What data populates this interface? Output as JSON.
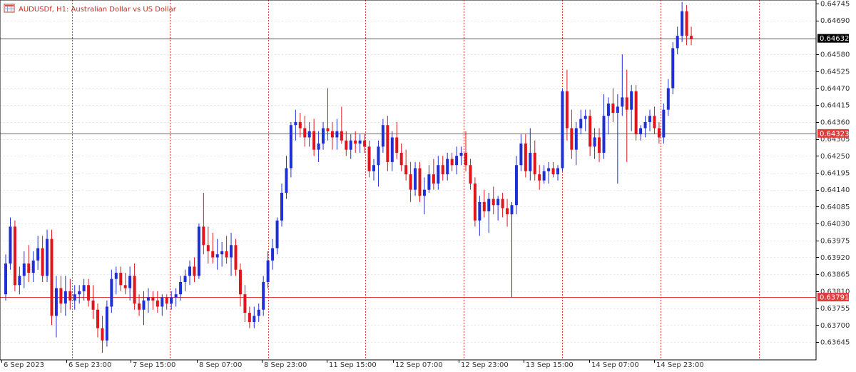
{
  "header": {
    "title": "AUDUSDf, H1:  Australian Dollar vs US Dollar",
    "icon": "chart-grid-icon"
  },
  "colors": {
    "bull": "#1f2fd6",
    "bear": "#e0141b",
    "grid": "#e6e6e6",
    "session": "#e03c3c",
    "level": "#e03c3c",
    "current": "#000000",
    "text": "#333333"
  },
  "chart_data": {
    "type": "candlestick",
    "title": "AUDUSDf, H1:  Australian Dollar vs US Dollar",
    "ylim": [
      0.6361,
      0.6477
    ],
    "grid": true,
    "y_ticks": [
      0.64745,
      0.6469,
      0.6458,
      0.64525,
      0.6447,
      0.64415,
      0.6436,
      0.64305,
      0.6425,
      0.64195,
      0.6414,
      0.64085,
      0.6403,
      0.63975,
      0.6392,
      0.63865,
      0.6381,
      0.63755,
      0.637,
      0.63645
    ],
    "x_labels": [
      "6 Sep 2023",
      "6 Sep 23:00",
      "7 Sep 15:00",
      "8 Sep 07:00",
      "8 Sep 23:00",
      "11 Sep 15:00",
      "12 Sep 07:00",
      "12 Sep 23:00",
      "13 Sep 15:00",
      "14 Sep 07:00",
      "14 Sep 23:00"
    ],
    "current_price": 0.64632,
    "levels": [
      0.64323,
      0.63791
    ],
    "candles": [
      [
        0.638,
        0.6393,
        0.6378,
        0.639
      ],
      [
        0.639,
        0.6405,
        0.6388,
        0.6402
      ],
      [
        0.6402,
        0.6404,
        0.6381,
        0.6383
      ],
      [
        0.6383,
        0.6389,
        0.638,
        0.6386
      ],
      [
        0.6386,
        0.6394,
        0.6382,
        0.639
      ],
      [
        0.639,
        0.6396,
        0.6384,
        0.6387
      ],
      [
        0.6387,
        0.6394,
        0.6384,
        0.6391
      ],
      [
        0.6391,
        0.6399,
        0.6388,
        0.6395
      ],
      [
        0.6395,
        0.6399,
        0.6384,
        0.6386
      ],
      [
        0.6386,
        0.6401,
        0.6384,
        0.6398
      ],
      [
        0.6398,
        0.6401,
        0.637,
        0.6373
      ],
      [
        0.6373,
        0.6386,
        0.6366,
        0.6382
      ],
      [
        0.6382,
        0.6386,
        0.6374,
        0.6377
      ],
      [
        0.6377,
        0.6386,
        0.6373,
        0.6381
      ],
      [
        0.6381,
        0.6385,
        0.6375,
        0.6378
      ],
      [
        0.6378,
        0.6383,
        0.6375,
        0.638
      ],
      [
        0.638,
        0.6383,
        0.6377,
        0.6381
      ],
      [
        0.6381,
        0.6385,
        0.6378,
        0.6383
      ],
      [
        0.6383,
        0.6385,
        0.6376,
        0.6378
      ],
      [
        0.6378,
        0.6383,
        0.6372,
        0.6375
      ],
      [
        0.6375,
        0.6377,
        0.6366,
        0.6369
      ],
      [
        0.6369,
        0.6373,
        0.6361,
        0.6365
      ],
      [
        0.6365,
        0.6378,
        0.6363,
        0.6376
      ],
      [
        0.6376,
        0.6388,
        0.6374,
        0.6385
      ],
      [
        0.6385,
        0.6389,
        0.638,
        0.6387
      ],
      [
        0.6387,
        0.6389,
        0.6381,
        0.6383
      ],
      [
        0.6383,
        0.6387,
        0.638,
        0.6382
      ],
      [
        0.6382,
        0.6389,
        0.6378,
        0.6386
      ],
      [
        0.6386,
        0.639,
        0.6375,
        0.6377
      ],
      [
        0.6377,
        0.638,
        0.6373,
        0.6375
      ],
      [
        0.6375,
        0.6381,
        0.637,
        0.6378
      ],
      [
        0.6378,
        0.6382,
        0.6374,
        0.6379
      ],
      [
        0.6379,
        0.6381,
        0.6375,
        0.6378
      ],
      [
        0.6378,
        0.6381,
        0.6374,
        0.6376
      ],
      [
        0.6376,
        0.638,
        0.6373,
        0.6379
      ],
      [
        0.6379,
        0.638,
        0.6375,
        0.6377
      ],
      [
        0.6377,
        0.6381,
        0.6375,
        0.6379
      ],
      [
        0.6379,
        0.6382,
        0.6376,
        0.638
      ],
      [
        0.638,
        0.6386,
        0.6378,
        0.6384
      ],
      [
        0.6384,
        0.6388,
        0.6381,
        0.6386
      ],
      [
        0.6386,
        0.6391,
        0.6383,
        0.6389
      ],
      [
        0.6389,
        0.6392,
        0.6384,
        0.6386
      ],
      [
        0.6386,
        0.6403,
        0.6385,
        0.6402
      ],
      [
        0.6402,
        0.6413,
        0.6393,
        0.6396
      ],
      [
        0.6396,
        0.6402,
        0.639,
        0.6394
      ],
      [
        0.6394,
        0.64,
        0.639,
        0.6392
      ],
      [
        0.6392,
        0.6398,
        0.6388,
        0.6393
      ],
      [
        0.6393,
        0.6397,
        0.6389,
        0.6394
      ],
      [
        0.6394,
        0.6399,
        0.639,
        0.6392
      ],
      [
        0.6392,
        0.64,
        0.6386,
        0.6396
      ],
      [
        0.6396,
        0.6398,
        0.6386,
        0.6388
      ],
      [
        0.6388,
        0.639,
        0.6376,
        0.638
      ],
      [
        0.638,
        0.6383,
        0.6371,
        0.6374
      ],
      [
        0.6374,
        0.6376,
        0.6369,
        0.6371
      ],
      [
        0.6371,
        0.6376,
        0.6369,
        0.6373
      ],
      [
        0.6373,
        0.6377,
        0.6371,
        0.6375
      ],
      [
        0.6375,
        0.6386,
        0.6373,
        0.6384
      ],
      [
        0.6384,
        0.6394,
        0.6382,
        0.6391
      ],
      [
        0.6391,
        0.6398,
        0.6388,
        0.6395
      ],
      [
        0.6395,
        0.6405,
        0.6393,
        0.6404
      ],
      [
        0.6404,
        0.6416,
        0.6402,
        0.6413
      ],
      [
        0.6413,
        0.6425,
        0.6411,
        0.6421
      ],
      [
        0.6421,
        0.6436,
        0.6418,
        0.6435
      ],
      [
        0.6435,
        0.644,
        0.643,
        0.6436
      ],
      [
        0.6436,
        0.6439,
        0.6431,
        0.6434
      ],
      [
        0.6434,
        0.6438,
        0.6428,
        0.6431
      ],
      [
        0.6431,
        0.6436,
        0.6428,
        0.6433
      ],
      [
        0.6433,
        0.6437,
        0.6425,
        0.6427
      ],
      [
        0.6427,
        0.6433,
        0.6423,
        0.6429
      ],
      [
        0.6429,
        0.6436,
        0.6427,
        0.6434
      ],
      [
        0.6434,
        0.6447,
        0.643,
        0.6433
      ],
      [
        0.6433,
        0.6436,
        0.6427,
        0.6431
      ],
      [
        0.6431,
        0.6437,
        0.6427,
        0.6433
      ],
      [
        0.6433,
        0.6441,
        0.6429,
        0.643
      ],
      [
        0.643,
        0.6433,
        0.6425,
        0.6427
      ],
      [
        0.6427,
        0.6432,
        0.6424,
        0.643
      ],
      [
        0.643,
        0.6433,
        0.6426,
        0.6429
      ],
      [
        0.6429,
        0.6432,
        0.6426,
        0.643
      ],
      [
        0.643,
        0.6432,
        0.6426,
        0.6428
      ],
      [
        0.6428,
        0.643,
        0.6418,
        0.642
      ],
      [
        0.642,
        0.6424,
        0.6417,
        0.6422
      ],
      [
        0.6422,
        0.643,
        0.6415,
        0.6428
      ],
      [
        0.6428,
        0.6437,
        0.6426,
        0.6435
      ],
      [
        0.6435,
        0.6438,
        0.642,
        0.6423
      ],
      [
        0.6423,
        0.6433,
        0.642,
        0.6431
      ],
      [
        0.6431,
        0.6436,
        0.6424,
        0.6426
      ],
      [
        0.6426,
        0.6429,
        0.642,
        0.6422
      ],
      [
        0.6422,
        0.6427,
        0.6417,
        0.6419
      ],
      [
        0.6419,
        0.6423,
        0.641,
        0.6414
      ],
      [
        0.6414,
        0.6423,
        0.6412,
        0.6421
      ],
      [
        0.6421,
        0.6423,
        0.641,
        0.6412
      ],
      [
        0.6412,
        0.6418,
        0.6406,
        0.6414
      ],
      [
        0.6414,
        0.6422,
        0.6413,
        0.6419
      ],
      [
        0.6419,
        0.6424,
        0.6414,
        0.6416
      ],
      [
        0.6416,
        0.6425,
        0.6414,
        0.6422
      ],
      [
        0.6422,
        0.6425,
        0.6417,
        0.6419
      ],
      [
        0.6419,
        0.6426,
        0.6417,
        0.6424
      ],
      [
        0.6424,
        0.6426,
        0.642,
        0.6422
      ],
      [
        0.6422,
        0.6428,
        0.6419,
        0.6425
      ],
      [
        0.6425,
        0.6428,
        0.6422,
        0.6426
      ],
      [
        0.6426,
        0.6433,
        0.642,
        0.6422
      ],
      [
        0.6422,
        0.6424,
        0.6414,
        0.6416
      ],
      [
        0.6416,
        0.6418,
        0.6402,
        0.6404
      ],
      [
        0.6404,
        0.6412,
        0.6399,
        0.641
      ],
      [
        0.641,
        0.6414,
        0.6405,
        0.6407
      ],
      [
        0.6407,
        0.6413,
        0.64,
        0.6411
      ],
      [
        0.6411,
        0.6415,
        0.6406,
        0.6409
      ],
      [
        0.6409,
        0.6412,
        0.6404,
        0.6411
      ],
      [
        0.6411,
        0.6413,
        0.6405,
        0.6408
      ],
      [
        0.6408,
        0.6411,
        0.6402,
        0.6406
      ],
      [
        0.6406,
        0.641,
        0.6379,
        0.6409
      ],
      [
        0.6409,
        0.6425,
        0.6406,
        0.6422
      ],
      [
        0.6422,
        0.6432,
        0.642,
        0.6429
      ],
      [
        0.6429,
        0.6432,
        0.6418,
        0.642
      ],
      [
        0.642,
        0.6434,
        0.6417,
        0.6426
      ],
      [
        0.6426,
        0.643,
        0.6417,
        0.6419
      ],
      [
        0.6419,
        0.6422,
        0.6414,
        0.6417
      ],
      [
        0.6417,
        0.6422,
        0.6416,
        0.642
      ],
      [
        0.642,
        0.6423,
        0.6416,
        0.6421
      ],
      [
        0.6421,
        0.6423,
        0.6418,
        0.6419
      ],
      [
        0.6419,
        0.6422,
        0.6417,
        0.6421
      ],
      [
        0.6421,
        0.6447,
        0.642,
        0.6446
      ],
      [
        0.6446,
        0.6453,
        0.643,
        0.6434
      ],
      [
        0.6434,
        0.644,
        0.6424,
        0.6427
      ],
      [
        0.6427,
        0.6436,
        0.6422,
        0.6434
      ],
      [
        0.6434,
        0.644,
        0.6432,
        0.6437
      ],
      [
        0.6437,
        0.644,
        0.6433,
        0.6438
      ],
      [
        0.6438,
        0.644,
        0.6425,
        0.6428
      ],
      [
        0.6428,
        0.6434,
        0.6424,
        0.6431
      ],
      [
        0.6431,
        0.6434,
        0.6423,
        0.6426
      ],
      [
        0.6426,
        0.6445,
        0.6424,
        0.6438
      ],
      [
        0.6438,
        0.6444,
        0.6432,
        0.6442
      ],
      [
        0.6442,
        0.6447,
        0.6436,
        0.6439
      ],
      [
        0.6439,
        0.6445,
        0.6416,
        0.6441
      ],
      [
        0.6441,
        0.6458,
        0.6438,
        0.6444
      ],
      [
        0.6444,
        0.6453,
        0.6423,
        0.644
      ],
      [
        0.644,
        0.6448,
        0.6433,
        0.6446
      ],
      [
        0.6446,
        0.6448,
        0.643,
        0.6432
      ],
      [
        0.6432,
        0.6435,
        0.643,
        0.6434
      ],
      [
        0.6434,
        0.6438,
        0.6431,
        0.6436
      ],
      [
        0.6436,
        0.644,
        0.6433,
        0.6438
      ],
      [
        0.6438,
        0.6441,
        0.6432,
        0.6434
      ],
      [
        0.6434,
        0.6436,
        0.6429,
        0.6431
      ],
      [
        0.6431,
        0.6442,
        0.6429,
        0.644
      ],
      [
        0.644,
        0.645,
        0.6438,
        0.6447
      ],
      [
        0.6447,
        0.6462,
        0.6445,
        0.646
      ],
      [
        0.646,
        0.6467,
        0.6458,
        0.6464
      ],
      [
        0.6464,
        0.6475,
        0.6462,
        0.6472
      ],
      [
        0.6472,
        0.6474,
        0.6461,
        0.6464
      ],
      [
        0.6464,
        0.6467,
        0.6461,
        0.6463
      ]
    ]
  }
}
